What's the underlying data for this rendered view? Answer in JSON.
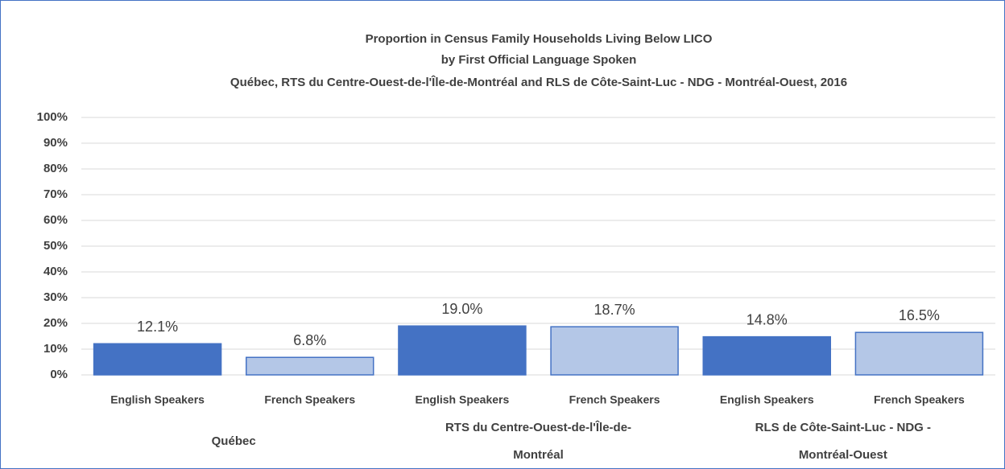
{
  "chart_data": {
    "type": "bar",
    "title": [
      "Proportion in Census Family Households Living Below LICO",
      "by First Official Language Spoken",
      "Québec, RTS du Centre-Ouest-de-l'Île-de-Montréal and RLS de Côte-Saint-Luc - NDG - Montréal-Ouest, 2016"
    ],
    "categories": [
      "English Speakers",
      "French Speakers",
      "English Speakers",
      "French Speakers",
      "English Speakers",
      "French Speakers"
    ],
    "groups": [
      "Québec",
      "RTS du Centre-Ouest-de-l'Île-de-Montréal",
      "RLS de Côte-Saint-Luc - NDG - Montréal-Ouest"
    ],
    "values": [
      12.1,
      6.8,
      19.0,
      18.7,
      14.8,
      16.5
    ],
    "value_labels": [
      "12.1%",
      "6.8%",
      "19.0%",
      "18.7%",
      "14.8%",
      "16.5%"
    ],
    "colors": [
      "#4472c4",
      "#b4c7e7",
      "#4472c4",
      "#b4c7e7",
      "#4472c4",
      "#b4c7e7"
    ],
    "edge_color": "#4472c4",
    "ylim": [
      0,
      100
    ],
    "yticks": [
      {
        "value": 0,
        "label": "0%"
      },
      {
        "value": 10,
        "label": "10%"
      },
      {
        "value": 20,
        "label": "20%"
      },
      {
        "value": 30,
        "label": "30%"
      },
      {
        "value": 40,
        "label": "40%"
      },
      {
        "value": 50,
        "label": "50%"
      },
      {
        "value": 60,
        "label": "60%"
      },
      {
        "value": 70,
        "label": "70%"
      },
      {
        "value": 80,
        "label": "80%"
      },
      {
        "value": 90,
        "label": "90%"
      },
      {
        "value": 100,
        "label": "100%"
      }
    ],
    "grid": true
  }
}
